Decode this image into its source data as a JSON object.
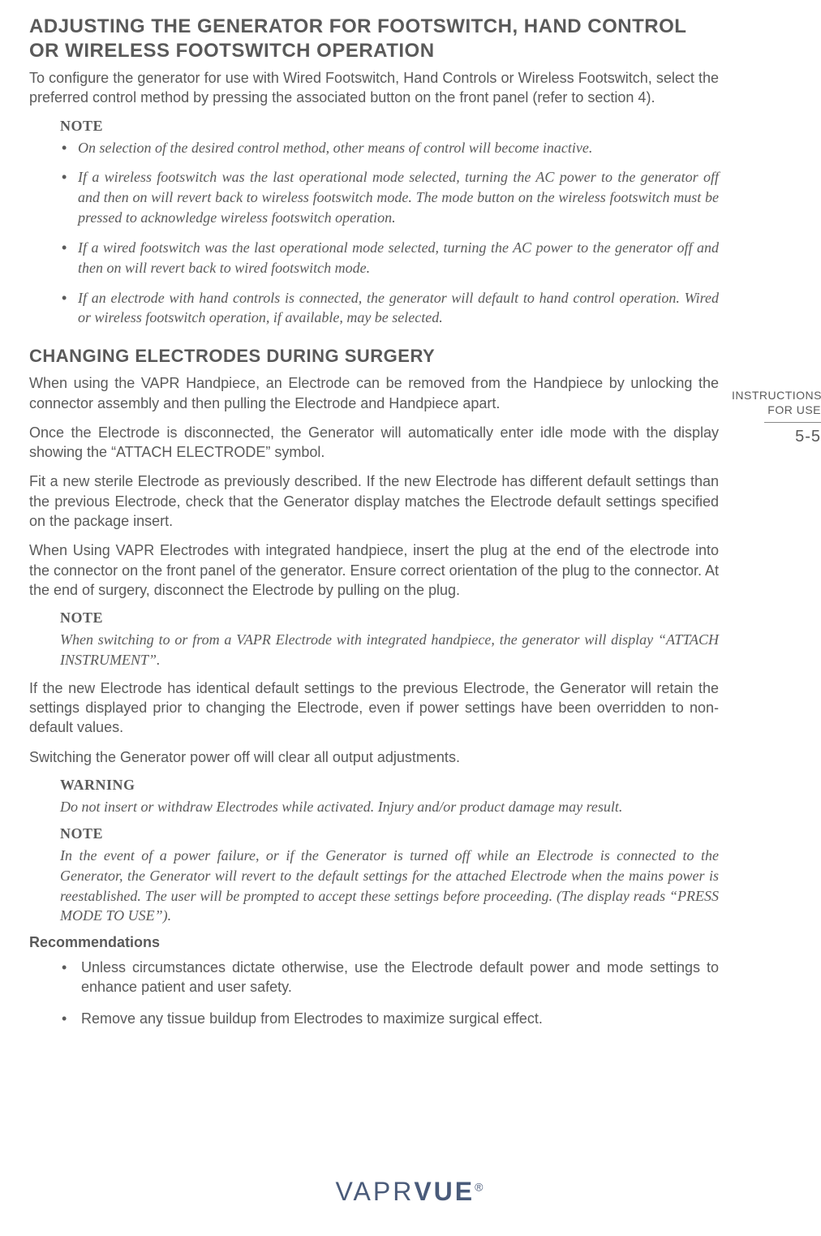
{
  "sidebar": {
    "instructions_line1": "INSTRUCTIONS",
    "instructions_line2": "FOR USE",
    "page_number": "5-5"
  },
  "section1": {
    "heading": "ADJUSTING THE GENERATOR FOR FOOTSWITCH, HAND CONTROL OR WIRELESS FOOTSWITCH OPERATION",
    "intro": "To configure the generator for use with Wired Footswitch, Hand Controls or Wireless Footswitch, select the preferred control method by pressing the associated button on the front panel (refer to section 4).",
    "note_label": "NOTE",
    "notes": [
      "On selection of the desired control method, other means of control will become inactive.",
      "If a wireless footswitch was the last operational mode selected, turning the AC power to the generator off and then on will revert back to wireless footswitch mode. The mode button on the wireless footswitch must be pressed to acknowledge wireless footswitch operation.",
      "If a wired footswitch was the last operational mode selected, turning the AC power to the generator off and then on will revert back to wired footswitch mode.",
      "If an electrode with hand controls is connected, the generator will default to hand control operation. Wired or wireless footswitch operation, if available, may be selected."
    ]
  },
  "section2": {
    "heading": "CHANGING ELECTRODES DURING SURGERY",
    "p1": "When using the VAPR Handpiece, an Electrode can be removed from the Handpiece by unlocking the connector assembly and then pulling the Electrode and Handpiece apart.",
    "p2": "Once the Electrode is disconnected, the Generator will automatically enter idle mode with the display showing the “ATTACH ELECTRODE” symbol.",
    "p3": "Fit a new sterile Electrode as previously described. If the new Electrode has different default settings than the previous Electrode, check that the Generator display matches the Electrode default settings specified on the package insert.",
    "p4": "When Using VAPR Electrodes with integrated handpiece, insert the plug at the end of the electrode into the connector on the front panel of the generator. Ensure correct orientation of the plug to the connector. At the end of surgery, disconnect the Electrode by pulling on the plug.",
    "note1_label": "NOTE",
    "note1_text": "When switching to or from a VAPR Electrode with integrated handpiece, the generator will display “ATTACH INSTRUMENT”.",
    "p5": "If the new Electrode has identical default settings to the previous Electrode, the Generator will retain the settings displayed prior to changing the Electrode, even if power settings have been overridden to non-default values.",
    "p6": "Switching the Generator power off will clear all output adjustments.",
    "warning_label": "WARNING",
    "warning_text": "Do not insert or withdraw Electrodes while activated. Injury and/or product damage may result.",
    "note2_label": "NOTE",
    "note2_text": "In the event of a power failure, or if the Generator is turned off while an Electrode is connected to the Generator, the Generator will revert to the default settings for the attached Electrode when the mains power is reestablished. The user will be prompted to accept these settings before proceeding. (The display reads “PRESS MODE TO USE”).",
    "rec_heading": "Recommendations",
    "recs": [
      "Unless circumstances dictate otherwise, use the Electrode default power and mode settings to enhance patient and user safety.",
      "Remove any tissue buildup from Electrodes to maximize surgical effect."
    ]
  },
  "logo": {
    "part1": "VAPR",
    "part2": "VUE",
    "reg": "®",
    "color": "#4a5b7a"
  }
}
